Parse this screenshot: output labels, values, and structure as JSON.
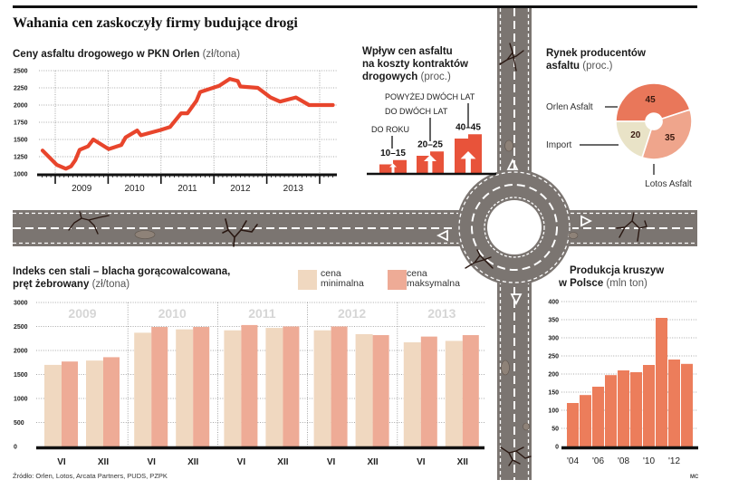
{
  "title": "Wahania cen zaskoczyły firmy budujące drogi",
  "source": "Źródło: Orlen, Lotos, Arcata Partners, PUDS, PZPK",
  "credit": "MC",
  "colors": {
    "price_line": "#e8452c",
    "impact_bar": "#e8533a",
    "road": "#7b7571",
    "road_marking": "#ffffff",
    "crack": "#2a1812",
    "steel_min": "#f0d8c0",
    "steel_max": "#eeab96",
    "aggregates_bar": "#ec7d5b",
    "pie_orlen": "#e9775a",
    "pie_lotos": "#efa58c",
    "pie_import": "#e9e3c7",
    "year_watermark": "#d6d6d6"
  },
  "sections": {
    "asphalt_price": {
      "title": "Ceny asfaltu drogowego w PKN Orlen",
      "unit": "(zł/tona)"
    },
    "contract_impact": {
      "lines": [
        "Wpływ cen asfaltu",
        "na koszty kontraktów",
        "drogowych"
      ],
      "unit": "(proc.)"
    },
    "asphalt_market": {
      "lines": [
        "Rynek producentów",
        "asfaltu"
      ],
      "unit": "(proc.)"
    },
    "steel_index": {
      "lines": [
        "Indeks cen stali – blacha gorącowalcowana,",
        "pręt żebrowany"
      ],
      "unit": "(zł/tona)"
    },
    "aggregates": {
      "lines": [
        "Produkcja kruszyw",
        "w Polsce"
      ],
      "unit": "(mln ton)"
    }
  },
  "legend": {
    "min": {
      "line1": "cena",
      "line2": "minimalna"
    },
    "max": {
      "line1": "cena",
      "line2": "maksymalna"
    }
  },
  "chart_data": [
    {
      "id": "asphalt_price",
      "type": "line",
      "title": "Ceny asfaltu drogowego w PKN Orlen",
      "ylabel": "zł/tona",
      "ylim": [
        1000,
        2500
      ],
      "yticks": [
        1000,
        1250,
        1500,
        1750,
        2000,
        2250,
        2500
      ],
      "ytick_labels": [
        "1000",
        "1250",
        "1500",
        "1750",
        "2000",
        "2250",
        "2500"
      ],
      "xlim": [
        2008.75,
        2014.25
      ],
      "year_labels": [
        "2009",
        "2010",
        "2011",
        "2012",
        "2013"
      ],
      "grid": true,
      "series": [
        {
          "name": "Cena asfaltu",
          "points": [
            [
              2008.76,
              1340
            ],
            [
              2009.03,
              1130
            ],
            [
              2009.2,
              1075
            ],
            [
              2009.3,
              1110
            ],
            [
              2009.38,
              1200
            ],
            [
              2009.46,
              1350
            ],
            [
              2009.62,
              1400
            ],
            [
              2009.72,
              1500
            ],
            [
              2010.01,
              1360
            ],
            [
              2010.25,
              1420
            ],
            [
              2010.33,
              1530
            ],
            [
              2010.55,
              1630
            ],
            [
              2010.62,
              1560
            ],
            [
              2011.0,
              1640
            ],
            [
              2011.17,
              1680
            ],
            [
              2011.38,
              1880
            ],
            [
              2011.5,
              1880
            ],
            [
              2011.67,
              2060
            ],
            [
              2011.74,
              2190
            ],
            [
              2012.1,
              2280
            ],
            [
              2012.3,
              2380
            ],
            [
              2012.45,
              2350
            ],
            [
              2012.5,
              2270
            ],
            [
              2012.83,
              2250
            ],
            [
              2013.07,
              2110
            ],
            [
              2013.25,
              2050
            ],
            [
              2013.55,
              2110
            ],
            [
              2013.8,
              2000
            ],
            [
              2014.25,
              2000
            ]
          ]
        }
      ]
    },
    {
      "id": "contract_impact",
      "type": "bar",
      "title": "Wpływ cen asfaltu na koszty kontraktów drogowych",
      "unit": "proc.",
      "categories": [
        "DO ROKU",
        "DO DWÓCH LAT",
        "POWYŻEJ DWÓCH LAT"
      ],
      "ranges": [
        [
          10,
          15
        ],
        [
          20,
          25
        ],
        [
          40,
          45
        ]
      ],
      "range_labels": [
        "10–15",
        "20–25",
        "40–45"
      ]
    },
    {
      "id": "asphalt_market",
      "type": "pie",
      "title": "Rynek producentów asfaltu",
      "unit": "proc.",
      "slices": [
        {
          "label": "Orlen Asfalt",
          "value": 45
        },
        {
          "label": "Lotos Asfalt",
          "value": 35
        },
        {
          "label": "Import",
          "value": 20
        }
      ]
    },
    {
      "id": "steel_index",
      "type": "bar",
      "title": "Indeks cen stali – blacha gorącowalcowana, pręt żebrowany",
      "ylabel": "zł/tona",
      "ylim": [
        0,
        3000
      ],
      "yticks": [
        0,
        500,
        1000,
        1500,
        2000,
        2500,
        3000
      ],
      "ytick_labels": [
        "0",
        "500",
        "1000",
        "1500",
        "2000",
        "2500",
        "3000"
      ],
      "years": [
        "2009",
        "2010",
        "2011",
        "2012",
        "2013"
      ],
      "periods": [
        "VI",
        "XII"
      ],
      "series": [
        {
          "name": "cena minimalna",
          "values": [
            [
              1700,
              1790
            ],
            [
              2370,
              2440
            ],
            [
              2420,
              2470
            ],
            [
              2420,
              2340
            ],
            [
              2170,
              2200
            ]
          ]
        },
        {
          "name": "cena maksymalna",
          "values": [
            [
              1770,
              1860
            ],
            [
              2490,
              2490
            ],
            [
              2530,
              2500
            ],
            [
              2500,
              2320
            ],
            [
              2290,
              2320
            ]
          ]
        }
      ],
      "legend": "top",
      "grid": true
    },
    {
      "id": "aggregates",
      "type": "bar",
      "title": "Produkcja kruszyw w Polsce",
      "ylabel": "mln ton",
      "ylim": [
        0,
        400
      ],
      "yticks": [
        0,
        50,
        100,
        150,
        200,
        250,
        300,
        350,
        400
      ],
      "ytick_labels": [
        "0",
        "50",
        "100",
        "150",
        "200",
        "250",
        "300",
        "350",
        "400"
      ],
      "categories": [
        "2004",
        "2005",
        "2006",
        "2007",
        "2008",
        "2009",
        "2010",
        "2011",
        "2012",
        "2013"
      ],
      "xtick_labels": [
        "'04",
        "",
        "'06",
        "",
        "'08",
        "",
        "'10",
        "",
        "'12",
        ""
      ],
      "values": [
        120,
        142,
        165,
        197,
        210,
        205,
        225,
        355,
        240,
        228
      ],
      "grid": true
    }
  ]
}
